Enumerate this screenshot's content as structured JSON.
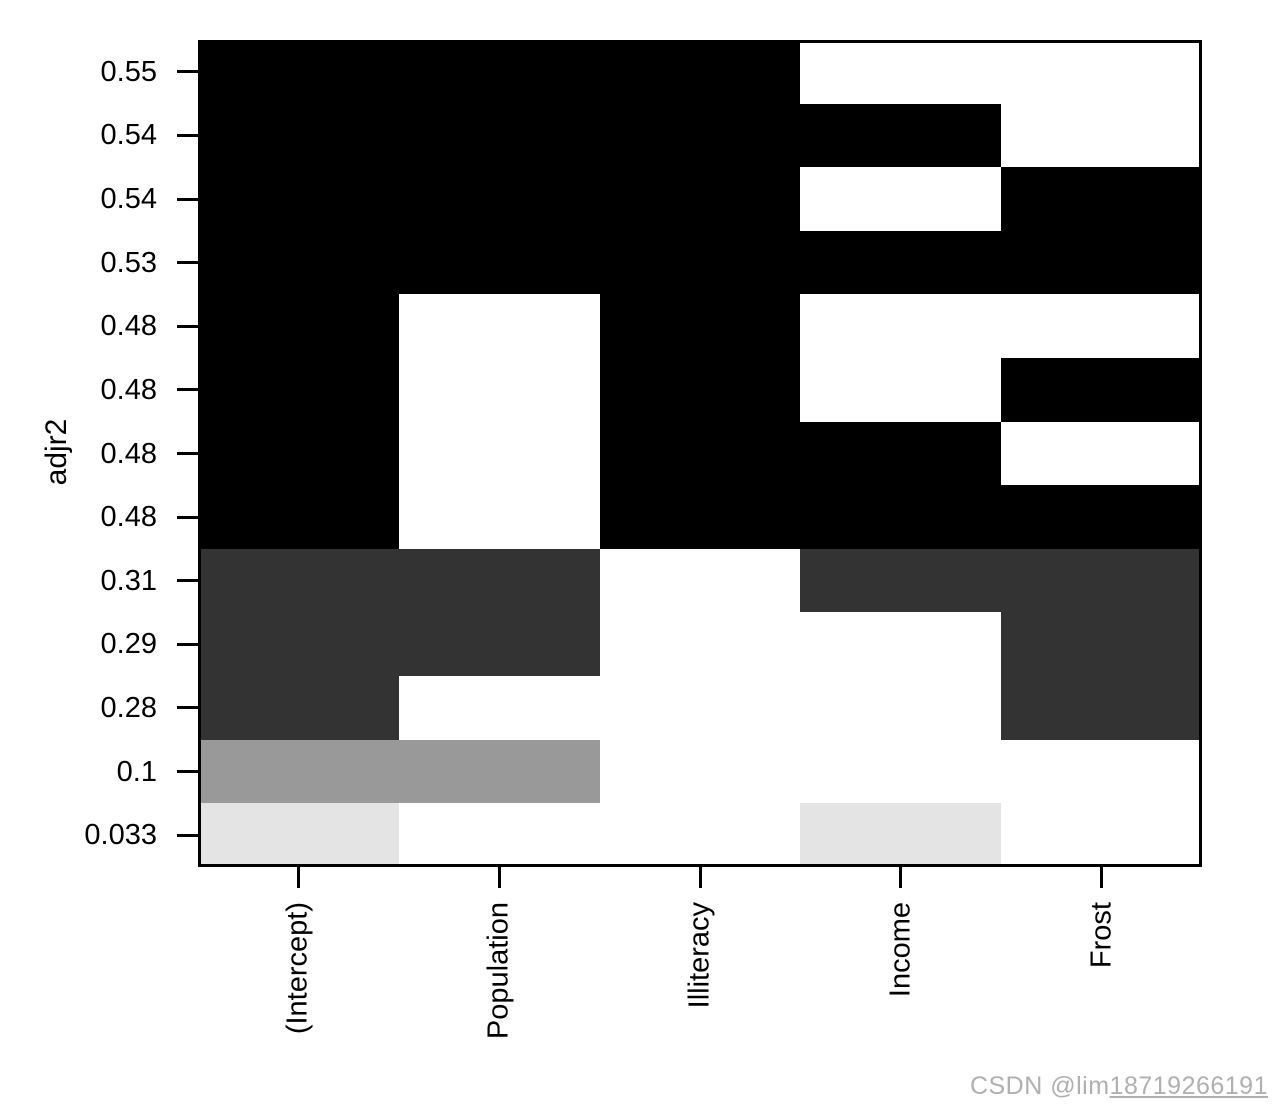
{
  "chart_data": {
    "type": "heatmap",
    "title": "",
    "xlabel": "",
    "ylabel": "adjr2",
    "legend": "none",
    "grid": false,
    "background": "#ffffff",
    "frame_color": "#000000",
    "columns": [
      "(Intercept)",
      "Population",
      "Illiteracy",
      "Income",
      "Frost"
    ],
    "rows": [
      {
        "label": "0.55",
        "color": "#000000",
        "cells": [
          1,
          1,
          1,
          0,
          0
        ]
      },
      {
        "label": "0.54",
        "color": "#000000",
        "cells": [
          1,
          1,
          1,
          1,
          0
        ]
      },
      {
        "label": "0.54",
        "color": "#000000",
        "cells": [
          1,
          1,
          1,
          0,
          1
        ]
      },
      {
        "label": "0.53",
        "color": "#000000",
        "cells": [
          1,
          1,
          1,
          1,
          1
        ]
      },
      {
        "label": "0.48",
        "color": "#000000",
        "cells": [
          1,
          0,
          1,
          0,
          0
        ]
      },
      {
        "label": "0.48",
        "color": "#000000",
        "cells": [
          1,
          0,
          1,
          0,
          1
        ]
      },
      {
        "label": "0.48",
        "color": "#000000",
        "cells": [
          1,
          0,
          1,
          1,
          0
        ]
      },
      {
        "label": "0.48",
        "color": "#000000",
        "cells": [
          1,
          0,
          1,
          1,
          1
        ]
      },
      {
        "label": "0.31",
        "color": "#333333",
        "cells": [
          1,
          1,
          0,
          1,
          1
        ]
      },
      {
        "label": "0.29",
        "color": "#333333",
        "cells": [
          1,
          1,
          0,
          0,
          1
        ]
      },
      {
        "label": "0.28",
        "color": "#333333",
        "cells": [
          1,
          0,
          0,
          0,
          1
        ]
      },
      {
        "label": "0.1",
        "color": "#999999",
        "cells": [
          1,
          1,
          0,
          0,
          0
        ]
      },
      {
        "label": "0.033",
        "color": "#e4e4e4",
        "cells": [
          1,
          0,
          0,
          1,
          0
        ]
      }
    ],
    "cell_off_color": "#ffffff"
  },
  "watermark": {
    "prefix": "CSDN @lim",
    "number": "18719266191",
    "color": "#b0b0b0"
  }
}
